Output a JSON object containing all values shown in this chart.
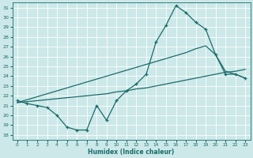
{
  "xlabel": "Humidex (Indice chaleur)",
  "xlim": [
    -0.5,
    23.5
  ],
  "ylim": [
    17.5,
    31.5
  ],
  "xticks": [
    0,
    1,
    2,
    3,
    4,
    5,
    6,
    7,
    8,
    9,
    10,
    11,
    12,
    13,
    14,
    15,
    16,
    17,
    18,
    19,
    20,
    21,
    22,
    23
  ],
  "yticks": [
    18,
    19,
    20,
    21,
    22,
    23,
    24,
    25,
    26,
    27,
    28,
    29,
    30,
    31
  ],
  "bg_color": "#cce8e8",
  "line_color": "#1a6b6b",
  "grid_color": "#ffffff",
  "line1_x": [
    0,
    1,
    2,
    3,
    4,
    5,
    6,
    7,
    8,
    9,
    10,
    11,
    12,
    13,
    14,
    15,
    16,
    17,
    18,
    19,
    20,
    21,
    22,
    23
  ],
  "line1_y": [
    21.5,
    21.2,
    21.0,
    20.8,
    20.0,
    18.8,
    18.5,
    18.5,
    21.0,
    19.5,
    21.5,
    22.5,
    23.2,
    24.2,
    27.5,
    29.2,
    31.2,
    30.5,
    29.5,
    28.8,
    26.2,
    24.2,
    24.2,
    23.8
  ],
  "line2_x": [
    0,
    1,
    2,
    3,
    4,
    5,
    6,
    7,
    8,
    9,
    10,
    11,
    12,
    13,
    14,
    15,
    16,
    17,
    18,
    19,
    20,
    21,
    22,
    23
  ],
  "line2_y": [
    21.3,
    21.4,
    21.5,
    21.6,
    21.7,
    21.8,
    21.9,
    22.0,
    22.1,
    22.2,
    22.4,
    22.5,
    22.7,
    22.8,
    23.0,
    23.2,
    23.4,
    23.6,
    23.8,
    24.0,
    24.2,
    24.4,
    24.5,
    24.7
  ],
  "line3_x": [
    0,
    1,
    2,
    3,
    4,
    5,
    6,
    7,
    8,
    9,
    10,
    11,
    12,
    13,
    14,
    15,
    16,
    17,
    18,
    19,
    20,
    21,
    22,
    23
  ],
  "line3_y": [
    21.3,
    21.6,
    21.9,
    22.2,
    22.5,
    22.8,
    23.1,
    23.4,
    23.7,
    24.0,
    24.3,
    24.6,
    24.9,
    25.2,
    25.5,
    25.8,
    26.1,
    26.4,
    26.8,
    27.1,
    26.2,
    24.5,
    24.2,
    23.8
  ]
}
